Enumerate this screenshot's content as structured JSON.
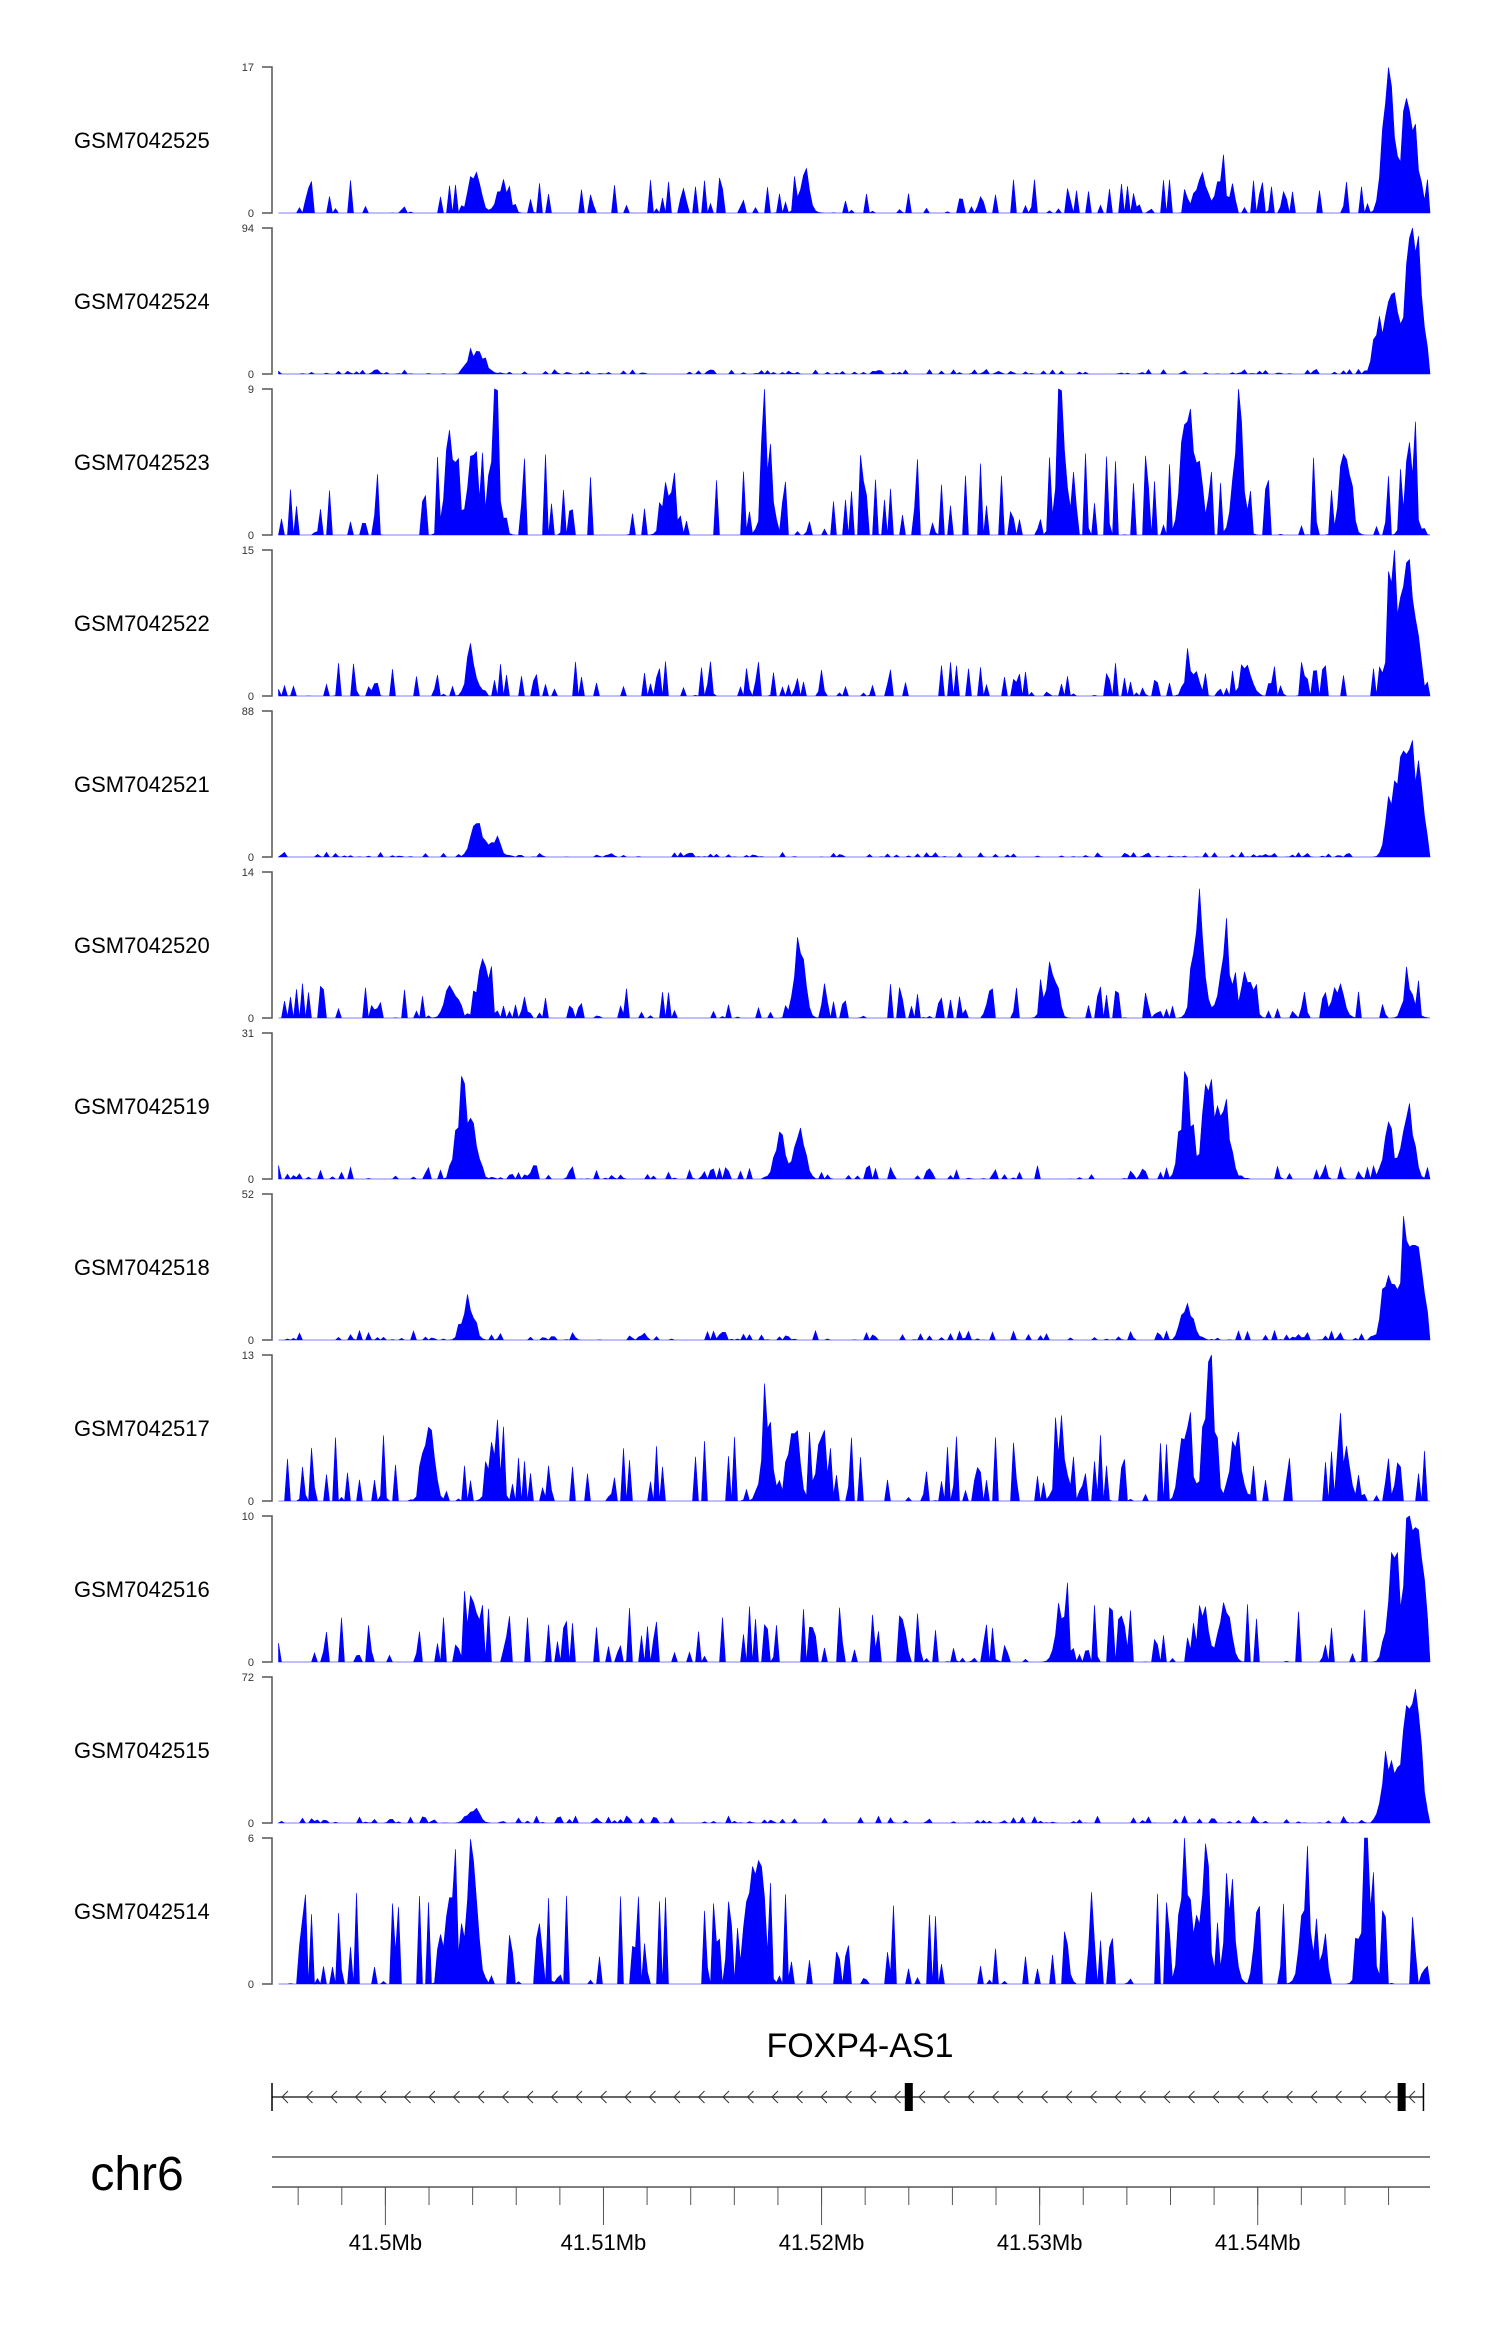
{
  "chart_data": {
    "type": "area",
    "title": "",
    "chromosome": "chr6",
    "xrange_mb": [
      41.4948,
      41.5479
    ],
    "x_ticks": [
      "41.5Mb",
      "41.51Mb",
      "41.52Mb",
      "41.53Mb",
      "41.54Mb"
    ],
    "x_tick_values_mb": [
      41.5,
      41.51,
      41.52,
      41.53,
      41.54
    ],
    "minor_tick_step_mb": 0.002,
    "color": "#0000ff",
    "gene": {
      "name": "FOXP4-AS1",
      "start_mb": 41.4948,
      "end_mb": 41.5476,
      "strand": "-",
      "exons_mb": [
        41.524,
        41.5466,
        41.5474
      ]
    },
    "series": [
      {
        "name": "GSM7042525",
        "ymax": 17,
        "noise": 0.15,
        "peaks": [
          [
            41.5041,
            6
          ],
          [
            41.5054,
            5
          ],
          [
            41.5192,
            4.5
          ],
          [
            41.5373,
            5
          ],
          [
            41.5383,
            5
          ],
          [
            41.546,
            17
          ],
          [
            41.5468,
            14
          ],
          [
            41.5472,
            8
          ]
        ]
      },
      {
        "name": "GSM7042524",
        "ymax": 94,
        "noise": 0.02,
        "peaks": [
          [
            41.504,
            18
          ],
          [
            41.5045,
            10
          ],
          [
            41.5456,
            40
          ],
          [
            41.5462,
            70
          ],
          [
            41.547,
            90
          ],
          [
            41.5474,
            60
          ]
        ]
      },
      {
        "name": "GSM7042523",
        "ymax": 9,
        "noise": 0.35,
        "peaks": [
          [
            41.503,
            8
          ],
          [
            41.504,
            7
          ],
          [
            41.505,
            7
          ],
          [
            41.513,
            4
          ],
          [
            41.5175,
            5
          ],
          [
            41.531,
            8
          ],
          [
            41.5367,
            9
          ],
          [
            41.5372,
            6
          ],
          [
            41.5391,
            7
          ],
          [
            41.544,
            6
          ],
          [
            41.547,
            5
          ]
        ]
      },
      {
        "name": "GSM7042522",
        "ymax": 15,
        "noise": 0.15,
        "peaks": [
          [
            41.504,
            4
          ],
          [
            41.537,
            4
          ],
          [
            41.5395,
            4
          ],
          [
            41.5462,
            15
          ],
          [
            41.5468,
            12
          ],
          [
            41.5472,
            8
          ]
        ]
      },
      {
        "name": "GSM7042521",
        "ymax": 88,
        "noise": 0.02,
        "peaks": [
          [
            41.5042,
            25
          ],
          [
            41.505,
            15
          ],
          [
            41.5462,
            55
          ],
          [
            41.5468,
            85
          ],
          [
            41.5474,
            60
          ]
        ]
      },
      {
        "name": "GSM7042520",
        "ymax": 14,
        "noise": 0.15,
        "peaks": [
          [
            41.503,
            5
          ],
          [
            41.5045,
            6
          ],
          [
            41.519,
            7
          ],
          [
            41.5305,
            5
          ],
          [
            41.5373,
            14
          ],
          [
            41.5385,
            9
          ],
          [
            41.5395,
            6
          ],
          [
            41.5437,
            4
          ],
          [
            41.547,
            3
          ]
        ]
      },
      {
        "name": "GSM7042519",
        "ymax": 31,
        "noise": 0.06,
        "peaks": [
          [
            41.5035,
            20
          ],
          [
            41.504,
            12
          ],
          [
            41.5181,
            10
          ],
          [
            41.519,
            12
          ],
          [
            41.5367,
            25
          ],
          [
            41.5378,
            30
          ],
          [
            41.5385,
            20
          ],
          [
            41.546,
            12
          ],
          [
            41.5469,
            18
          ]
        ]
      },
      {
        "name": "GSM7042518",
        "ymax": 52,
        "noise": 0.04,
        "peaks": [
          [
            41.5038,
            20
          ],
          [
            41.5368,
            15
          ],
          [
            41.546,
            35
          ],
          [
            41.5468,
            50
          ],
          [
            41.5474,
            40
          ]
        ]
      },
      {
        "name": "GSM7042517",
        "ymax": 13,
        "noise": 0.3,
        "peaks": [
          [
            41.502,
            8
          ],
          [
            41.505,
            7
          ],
          [
            41.5175,
            9
          ],
          [
            41.5187,
            10
          ],
          [
            41.52,
            7
          ],
          [
            41.531,
            7
          ],
          [
            41.5367,
            8
          ],
          [
            41.5378,
            13
          ],
          [
            41.539,
            7
          ],
          [
            41.544,
            5
          ]
        ]
      },
      {
        "name": "GSM7042516",
        "ymax": 10,
        "noise": 0.25,
        "peaks": [
          [
            41.504,
            5
          ],
          [
            41.531,
            4
          ],
          [
            41.5375,
            5
          ],
          [
            41.5385,
            5
          ],
          [
            41.5462,
            9
          ],
          [
            41.547,
            10
          ],
          [
            41.5475,
            7
          ]
        ]
      },
      {
        "name": "GSM7042515",
        "ymax": 72,
        "noise": 0.03,
        "peaks": [
          [
            41.504,
            10
          ],
          [
            41.546,
            40
          ],
          [
            41.5468,
            70
          ],
          [
            41.5473,
            55
          ]
        ]
      },
      {
        "name": "GSM7042514",
        "ymax": 6,
        "noise": 0.4,
        "peaks": [
          [
            41.503,
            5
          ],
          [
            41.504,
            5.5
          ],
          [
            41.5167,
            6
          ],
          [
            41.5172,
            5
          ],
          [
            41.5367,
            6
          ],
          [
            41.5375,
            5
          ],
          [
            41.5387,
            4.5
          ],
          [
            41.5422,
            4
          ],
          [
            41.545,
            6
          ]
        ]
      }
    ]
  }
}
